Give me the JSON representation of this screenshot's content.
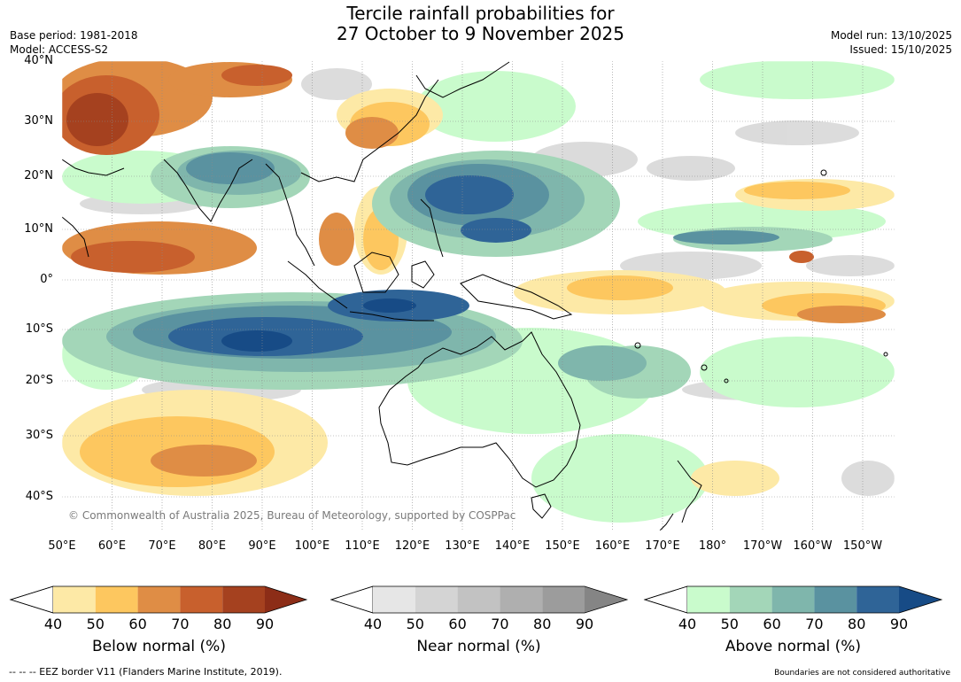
{
  "header": {
    "title_line1": "Tercile rainfall probabilities for",
    "title_line2": "27 October to 9 November 2025",
    "base_period": "Base period: 1981-2018",
    "model": "Model: ACCESS-S2",
    "model_run": "Model run: 13/10/2025",
    "issued": "Issued: 15/10/2025"
  },
  "map": {
    "lat_labels": [
      "40°N",
      "30°N",
      "20°N",
      "10°N",
      "0°",
      "10°S",
      "20°S",
      "30°S",
      "40°S"
    ],
    "lon_labels": [
      "50°E",
      "60°E",
      "70°E",
      "80°E",
      "90°E",
      "100°E",
      "110°E",
      "120°E",
      "130°E",
      "140°E",
      "150°E",
      "160°E",
      "170°E",
      "180°",
      "170°W",
      "160°W",
      "150°W"
    ],
    "copyright": "© Commonwealth of Australia 2025, Bureau of Meteorology, supported by COSPPac"
  },
  "colorbars": [
    {
      "title": "Below normal (%)",
      "ticks": [
        "40",
        "50",
        "60",
        "70",
        "80",
        "90"
      ],
      "colors": [
        "#fde9a6",
        "#fdc75f",
        "#df8d45",
        "#c8602d",
        "#a5411f"
      ],
      "extend_color": "#8c2d17"
    },
    {
      "title": "Near normal (%)",
      "ticks": [
        "40",
        "50",
        "60",
        "70",
        "80",
        "90"
      ],
      "colors": [
        "#e6e6e6",
        "#d4d4d4",
        "#c2c2c2",
        "#afafaf",
        "#9c9c9c"
      ],
      "extend_color": "#858585"
    },
    {
      "title": "Above normal (%)",
      "ticks": [
        "40",
        "50",
        "60",
        "70",
        "80",
        "90"
      ],
      "colors": [
        "#c9fbcc",
        "#a3d6b8",
        "#7fb6ac",
        "#5a92a0",
        "#2f6497"
      ],
      "extend_color": "#174b86"
    }
  ],
  "footer": {
    "eez_note": "--  --  -- EEZ border V11 (Flanders Marine Institute, 2019).",
    "boundaries_note": "Boundaries are not considered authoritative"
  }
}
